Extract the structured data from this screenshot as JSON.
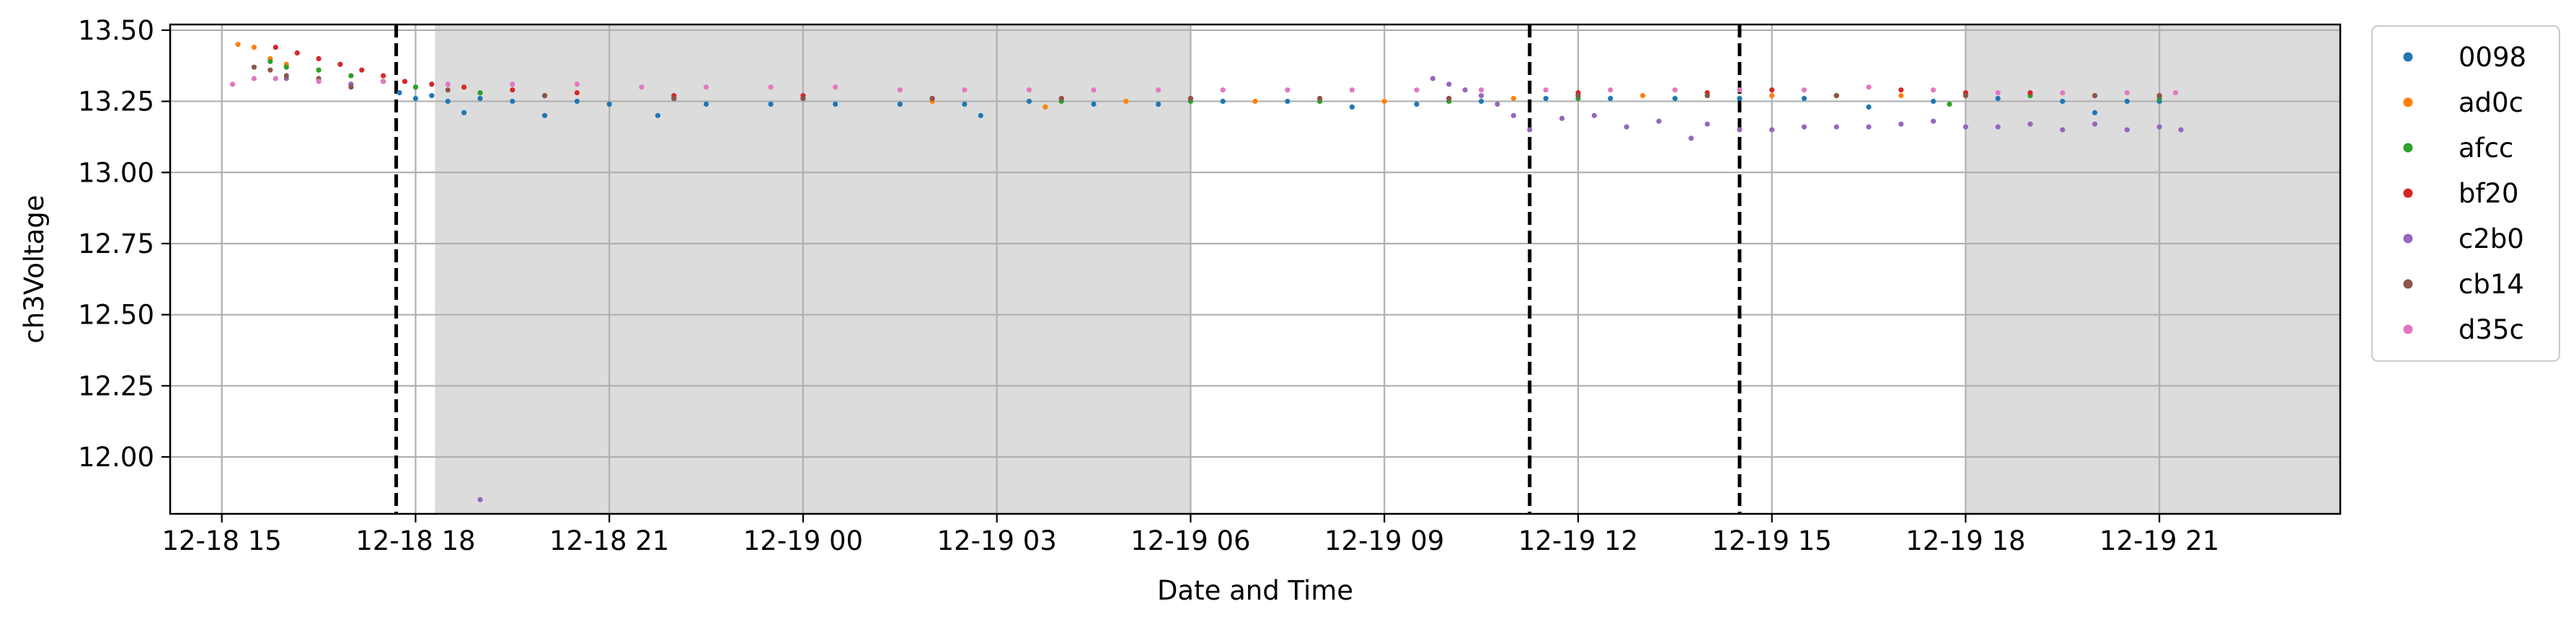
{
  "chart_data": {
    "type": "scatter",
    "xlabel": "Date and Time",
    "ylabel": "ch3Voltage",
    "xlim": [
      "2024-12-18 14:12",
      "2024-12-19 23:48"
    ],
    "ylim": [
      11.8,
      13.52
    ],
    "x_ticks": [
      {
        "t": "2024-12-18 15:00",
        "label": "12-18 15"
      },
      {
        "t": "2024-12-18 18:00",
        "label": "12-18 18"
      },
      {
        "t": "2024-12-18 21:00",
        "label": "12-18 21"
      },
      {
        "t": "2024-12-19 00:00",
        "label": "12-19 00"
      },
      {
        "t": "2024-12-19 03:00",
        "label": "12-19 03"
      },
      {
        "t": "2024-12-19 06:00",
        "label": "12-19 06"
      },
      {
        "t": "2024-12-19 09:00",
        "label": "12-19 09"
      },
      {
        "t": "2024-12-19 12:00",
        "label": "12-19 12"
      },
      {
        "t": "2024-12-19 15:00",
        "label": "12-19 15"
      },
      {
        "t": "2024-12-19 18:00",
        "label": "12-19 18"
      },
      {
        "t": "2024-12-19 21:00",
        "label": "12-19 21"
      }
    ],
    "y_ticks": [
      {
        "v": 12.0,
        "label": "12.00"
      },
      {
        "v": 12.25,
        "label": "12.25"
      },
      {
        "v": 12.5,
        "label": "12.50"
      },
      {
        "v": 12.75,
        "label": "12.75"
      },
      {
        "v": 13.0,
        "label": "13.00"
      },
      {
        "v": 13.25,
        "label": "13.25"
      },
      {
        "v": 13.5,
        "label": "13.50"
      }
    ],
    "grid": true,
    "legend_position": "outside-right-top",
    "shaded_regions": [
      {
        "start": "2024-12-18 18:18",
        "end": "2024-12-19 06:00",
        "color": "#dcdcdc"
      },
      {
        "start": "2024-12-19 18:00",
        "end": "2024-12-19 23:48",
        "color": "#dcdcdc"
      }
    ],
    "vertical_lines": [
      "2024-12-18 17:42",
      "2024-12-19 11:15",
      "2024-12-19 14:30"
    ],
    "series": [
      {
        "name": "0098",
        "color": "#1f77b4",
        "points": [
          [
            "2024-12-18 17:00",
            13.31
          ],
          [
            "2024-12-18 17:45",
            13.28
          ],
          [
            "2024-12-18 18:00",
            13.26
          ],
          [
            "2024-12-18 18:15",
            13.27
          ],
          [
            "2024-12-18 18:30",
            13.25
          ],
          [
            "2024-12-18 18:45",
            13.21
          ],
          [
            "2024-12-18 19:00",
            13.26
          ],
          [
            "2024-12-18 19:30",
            13.25
          ],
          [
            "2024-12-18 20:00",
            13.2
          ],
          [
            "2024-12-18 20:30",
            13.25
          ],
          [
            "2024-12-18 21:00",
            13.24
          ],
          [
            "2024-12-18 21:45",
            13.2
          ],
          [
            "2024-12-18 22:30",
            13.24
          ],
          [
            "2024-12-18 23:30",
            13.24
          ],
          [
            "2024-12-19 00:30",
            13.24
          ],
          [
            "2024-12-19 01:30",
            13.24
          ],
          [
            "2024-12-19 02:30",
            13.24
          ],
          [
            "2024-12-19 02:45",
            13.2
          ],
          [
            "2024-12-19 03:30",
            13.25
          ],
          [
            "2024-12-19 04:30",
            13.24
          ],
          [
            "2024-12-19 05:30",
            13.24
          ],
          [
            "2024-12-19 06:30",
            13.25
          ],
          [
            "2024-12-19 07:30",
            13.25
          ],
          [
            "2024-12-19 08:30",
            13.23
          ],
          [
            "2024-12-19 09:30",
            13.24
          ],
          [
            "2024-12-19 10:30",
            13.25
          ],
          [
            "2024-12-19 11:30",
            13.26
          ],
          [
            "2024-12-19 12:30",
            13.26
          ],
          [
            "2024-12-19 13:30",
            13.26
          ],
          [
            "2024-12-19 14:30",
            13.26
          ],
          [
            "2024-12-19 15:30",
            13.26
          ],
          [
            "2024-12-19 16:30",
            13.23
          ],
          [
            "2024-12-19 17:30",
            13.25
          ],
          [
            "2024-12-19 18:30",
            13.26
          ],
          [
            "2024-12-19 19:30",
            13.25
          ],
          [
            "2024-12-19 20:00",
            13.21
          ],
          [
            "2024-12-19 20:30",
            13.25
          ],
          [
            "2024-12-19 21:00",
            13.25
          ]
        ]
      },
      {
        "name": "ad0c",
        "color": "#ff7f0e",
        "points": [
          [
            "2024-12-18 15:15",
            13.45
          ],
          [
            "2024-12-18 15:30",
            13.44
          ],
          [
            "2024-12-18 15:45",
            13.4
          ],
          [
            "2024-12-18 16:00",
            13.38
          ],
          [
            "2024-12-18 16:30",
            13.36
          ],
          [
            "2024-12-18 17:00",
            13.34
          ],
          [
            "2024-12-18 17:30",
            13.32
          ],
          [
            "2024-12-18 18:00",
            13.3
          ],
          [
            "2024-12-18 19:00",
            13.28
          ],
          [
            "2024-12-18 20:00",
            13.27
          ],
          [
            "2024-12-18 22:00",
            13.26
          ],
          [
            "2024-12-19 00:00",
            13.26
          ],
          [
            "2024-12-19 02:00",
            13.25
          ],
          [
            "2024-12-19 03:45",
            13.23
          ],
          [
            "2024-12-19 05:00",
            13.25
          ],
          [
            "2024-12-19 07:00",
            13.25
          ],
          [
            "2024-12-19 09:00",
            13.25
          ],
          [
            "2024-12-19 11:00",
            13.26
          ],
          [
            "2024-12-19 13:00",
            13.27
          ],
          [
            "2024-12-19 15:00",
            13.27
          ],
          [
            "2024-12-19 17:00",
            13.27
          ],
          [
            "2024-12-19 19:00",
            13.27
          ],
          [
            "2024-12-19 21:00",
            13.27
          ]
        ]
      },
      {
        "name": "afcc",
        "color": "#2ca02c",
        "points": [
          [
            "2024-12-18 15:45",
            13.39
          ],
          [
            "2024-12-18 16:00",
            13.37
          ],
          [
            "2024-12-18 16:30",
            13.36
          ],
          [
            "2024-12-18 17:00",
            13.34
          ],
          [
            "2024-12-18 17:30",
            13.32
          ],
          [
            "2024-12-18 18:00",
            13.3
          ],
          [
            "2024-12-18 19:00",
            13.28
          ],
          [
            "2024-12-18 20:00",
            13.27
          ],
          [
            "2024-12-18 22:00",
            13.26
          ],
          [
            "2024-12-19 00:00",
            13.26
          ],
          [
            "2024-12-19 02:00",
            13.26
          ],
          [
            "2024-12-19 04:00",
            13.25
          ],
          [
            "2024-12-19 06:00",
            13.25
          ],
          [
            "2024-12-19 08:00",
            13.25
          ],
          [
            "2024-12-19 10:00",
            13.25
          ],
          [
            "2024-12-19 12:00",
            13.26
          ],
          [
            "2024-12-19 14:00",
            13.27
          ],
          [
            "2024-12-19 16:00",
            13.27
          ],
          [
            "2024-12-19 17:45",
            13.24
          ],
          [
            "2024-12-19 19:00",
            13.27
          ],
          [
            "2024-12-19 21:00",
            13.26
          ]
        ]
      },
      {
        "name": "bf20",
        "color": "#d62728",
        "points": [
          [
            "2024-12-18 15:50",
            13.44
          ],
          [
            "2024-12-18 16:10",
            13.42
          ],
          [
            "2024-12-18 16:30",
            13.4
          ],
          [
            "2024-12-18 16:50",
            13.38
          ],
          [
            "2024-12-18 17:10",
            13.36
          ],
          [
            "2024-12-18 17:30",
            13.34
          ],
          [
            "2024-12-18 17:50",
            13.32
          ],
          [
            "2024-12-18 18:15",
            13.31
          ],
          [
            "2024-12-18 18:45",
            13.3
          ],
          [
            "2024-12-18 19:30",
            13.29
          ],
          [
            "2024-12-18 20:30",
            13.28
          ],
          [
            "2024-12-18 22:00",
            13.27
          ],
          [
            "2024-12-19 00:00",
            13.27
          ],
          [
            "2024-12-19 02:00",
            13.26
          ],
          [
            "2024-12-19 04:00",
            13.26
          ],
          [
            "2024-12-19 06:00",
            13.26
          ],
          [
            "2024-12-19 08:00",
            13.26
          ],
          [
            "2024-12-19 10:00",
            13.26
          ],
          [
            "2024-12-19 12:00",
            13.28
          ],
          [
            "2024-12-19 14:00",
            13.28
          ],
          [
            "2024-12-19 15:00",
            13.29
          ],
          [
            "2024-12-19 16:00",
            13.27
          ],
          [
            "2024-12-19 17:00",
            13.29
          ],
          [
            "2024-12-19 18:00",
            13.28
          ],
          [
            "2024-12-19 19:00",
            13.28
          ],
          [
            "2024-12-19 20:00",
            13.27
          ],
          [
            "2024-12-19 21:00",
            13.27
          ]
        ]
      },
      {
        "name": "c2b0",
        "color": "#9467bd",
        "points": [
          [
            "2024-12-18 16:00",
            13.33
          ],
          [
            "2024-12-18 17:00",
            13.31
          ],
          [
            "2024-12-18 19:00",
            11.85
          ],
          [
            "2024-12-19 09:45",
            13.33
          ],
          [
            "2024-12-19 10:00",
            13.31
          ],
          [
            "2024-12-19 10:15",
            13.29
          ],
          [
            "2024-12-19 10:30",
            13.27
          ],
          [
            "2024-12-19 10:45",
            13.24
          ],
          [
            "2024-12-19 11:00",
            13.2
          ],
          [
            "2024-12-19 11:15",
            13.15
          ],
          [
            "2024-12-19 11:45",
            13.19
          ],
          [
            "2024-12-19 12:15",
            13.2
          ],
          [
            "2024-12-19 12:45",
            13.16
          ],
          [
            "2024-12-19 13:15",
            13.18
          ],
          [
            "2024-12-19 13:45",
            13.12
          ],
          [
            "2024-12-19 14:00",
            13.17
          ],
          [
            "2024-12-19 14:30",
            13.15
          ],
          [
            "2024-12-19 15:00",
            13.15
          ],
          [
            "2024-12-19 15:30",
            13.16
          ],
          [
            "2024-12-19 16:00",
            13.16
          ],
          [
            "2024-12-19 16:30",
            13.16
          ],
          [
            "2024-12-19 17:00",
            13.17
          ],
          [
            "2024-12-19 17:30",
            13.18
          ],
          [
            "2024-12-19 18:00",
            13.16
          ],
          [
            "2024-12-19 18:30",
            13.16
          ],
          [
            "2024-12-19 19:00",
            13.17
          ],
          [
            "2024-12-19 19:30",
            13.15
          ],
          [
            "2024-12-19 20:00",
            13.17
          ],
          [
            "2024-12-19 20:30",
            13.15
          ],
          [
            "2024-12-19 21:00",
            13.16
          ],
          [
            "2024-12-19 21:20",
            13.15
          ]
        ]
      },
      {
        "name": "cb14",
        "color": "#8c564b",
        "points": [
          [
            "2024-12-18 15:30",
            13.37
          ],
          [
            "2024-12-18 15:45",
            13.36
          ],
          [
            "2024-12-18 16:00",
            13.34
          ],
          [
            "2024-12-18 16:30",
            13.33
          ],
          [
            "2024-12-18 17:00",
            13.3
          ],
          [
            "2024-12-18 17:30",
            13.32
          ],
          [
            "2024-12-18 18:30",
            13.29
          ],
          [
            "2024-12-18 20:00",
            13.27
          ],
          [
            "2024-12-18 22:00",
            13.26
          ],
          [
            "2024-12-19 00:00",
            13.26
          ],
          [
            "2024-12-19 02:00",
            13.26
          ],
          [
            "2024-12-19 04:00",
            13.26
          ],
          [
            "2024-12-19 06:00",
            13.26
          ],
          [
            "2024-12-19 08:00",
            13.26
          ],
          [
            "2024-12-19 10:00",
            13.26
          ],
          [
            "2024-12-19 12:00",
            13.27
          ],
          [
            "2024-12-19 14:00",
            13.27
          ],
          [
            "2024-12-19 16:00",
            13.27
          ],
          [
            "2024-12-19 18:00",
            13.27
          ],
          [
            "2024-12-19 20:00",
            13.27
          ],
          [
            "2024-12-19 21:00",
            13.27
          ]
        ]
      },
      {
        "name": "d35c",
        "color": "#e377c2",
        "points": [
          [
            "2024-12-18 15:10",
            13.31
          ],
          [
            "2024-12-18 15:30",
            13.33
          ],
          [
            "2024-12-18 15:50",
            13.33
          ],
          [
            "2024-12-18 16:30",
            13.32
          ],
          [
            "2024-12-18 17:30",
            13.32
          ],
          [
            "2024-12-18 18:30",
            13.31
          ],
          [
            "2024-12-18 19:30",
            13.31
          ],
          [
            "2024-12-18 20:30",
            13.31
          ],
          [
            "2024-12-18 21:30",
            13.3
          ],
          [
            "2024-12-18 22:30",
            13.3
          ],
          [
            "2024-12-18 23:30",
            13.3
          ],
          [
            "2024-12-19 00:30",
            13.3
          ],
          [
            "2024-12-19 01:30",
            13.29
          ],
          [
            "2024-12-19 02:30",
            13.29
          ],
          [
            "2024-12-19 03:30",
            13.29
          ],
          [
            "2024-12-19 04:30",
            13.29
          ],
          [
            "2024-12-19 05:30",
            13.29
          ],
          [
            "2024-12-19 06:30",
            13.29
          ],
          [
            "2024-12-19 07:30",
            13.29
          ],
          [
            "2024-12-19 08:30",
            13.29
          ],
          [
            "2024-12-19 09:30",
            13.29
          ],
          [
            "2024-12-19 10:30",
            13.29
          ],
          [
            "2024-12-19 11:30",
            13.29
          ],
          [
            "2024-12-19 12:30",
            13.29
          ],
          [
            "2024-12-19 13:30",
            13.29
          ],
          [
            "2024-12-19 14:30",
            13.29
          ],
          [
            "2024-12-19 15:30",
            13.29
          ],
          [
            "2024-12-19 16:30",
            13.3
          ],
          [
            "2024-12-19 17:30",
            13.29
          ],
          [
            "2024-12-19 18:30",
            13.28
          ],
          [
            "2024-12-19 19:30",
            13.28
          ],
          [
            "2024-12-19 20:30",
            13.28
          ],
          [
            "2024-12-19 21:15",
            13.28
          ]
        ]
      }
    ]
  }
}
